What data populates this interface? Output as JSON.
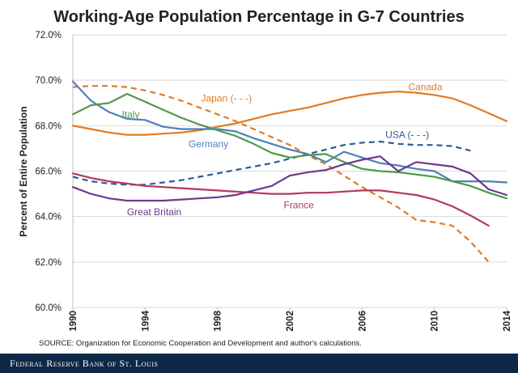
{
  "chart_data": {
    "type": "line",
    "title": "Working-Age Population Percentage in G-7 Countries",
    "ylabel": "Percent of Entire Population",
    "xlabel": "",
    "xlim": [
      1990,
      2014
    ],
    "ylim": [
      60,
      72
    ],
    "x_ticks": [
      1990,
      1994,
      1998,
      2002,
      2006,
      2010,
      2014
    ],
    "x_tick_labels": [
      "1990",
      "1994",
      "1998",
      "2002",
      "2006",
      "2010",
      "2014"
    ],
    "y_ticks": [
      60,
      62,
      64,
      66,
      68,
      70,
      72
    ],
    "y_tick_labels": [
      "60.0%",
      "62.0%",
      "64.0%",
      "66.0%",
      "68.0%",
      "70.0%",
      "72.0%"
    ],
    "grid": "horizontal",
    "series": [
      {
        "name": "Canada",
        "label": "Canada",
        "color": "#e07b24",
        "dash": false,
        "x": [
          1990,
          1991,
          1992,
          1993,
          1994,
          1995,
          1996,
          1997,
          1998,
          1999,
          2000,
          2001,
          2002,
          2003,
          2004,
          2005,
          2006,
          2007,
          2008,
          2009,
          2010,
          2011,
          2012,
          2013,
          2014
        ],
        "values": [
          68.0,
          67.85,
          67.7,
          67.6,
          67.6,
          67.65,
          67.7,
          67.8,
          67.95,
          68.1,
          68.3,
          68.5,
          68.65,
          68.8,
          69.0,
          69.2,
          69.35,
          69.45,
          69.5,
          69.45,
          69.35,
          69.2,
          68.9,
          68.55,
          68.2
        ]
      },
      {
        "name": "Japan",
        "label": "Japan (- - -)",
        "color": "#e07b24",
        "dash": true,
        "x": [
          1990,
          1991,
          1992,
          1993,
          1994,
          1995,
          1996,
          1997,
          1998,
          1999,
          2000,
          2001,
          2002,
          2003,
          2004,
          2005,
          2006,
          2007,
          2008,
          2009,
          2010,
          2011,
          2012,
          2013
        ],
        "values": [
          69.7,
          69.75,
          69.75,
          69.7,
          69.55,
          69.35,
          69.1,
          68.8,
          68.5,
          68.2,
          67.85,
          67.5,
          67.15,
          66.7,
          66.3,
          65.8,
          65.3,
          64.85,
          64.4,
          63.85,
          63.75,
          63.6,
          62.9,
          62.0
        ]
      },
      {
        "name": "USA",
        "label": "USA (- - -)",
        "color": "#2e5a9c",
        "dash": true,
        "x": [
          1990,
          1991,
          1992,
          1993,
          1994,
          1995,
          1996,
          1997,
          1998,
          1999,
          2000,
          2001,
          2002,
          2003,
          2004,
          2005,
          2006,
          2007,
          2008,
          2009,
          2010,
          2011,
          2012
        ],
        "values": [
          65.75,
          65.55,
          65.45,
          65.4,
          65.4,
          65.5,
          65.6,
          65.75,
          65.9,
          66.05,
          66.2,
          66.35,
          66.55,
          66.75,
          66.95,
          67.15,
          67.25,
          67.3,
          67.2,
          67.15,
          67.15,
          67.1,
          66.9
        ]
      },
      {
        "name": "Germany",
        "label": "Germany",
        "color": "#4f81bd",
        "dash": false,
        "x": [
          1990,
          1991,
          1992,
          1993,
          1994,
          1995,
          1996,
          1997,
          1998,
          1999,
          2000,
          2001,
          2002,
          2003,
          2004,
          2005,
          2006,
          2007,
          2008,
          2009,
          2010,
          2011,
          2012,
          2013,
          2014
        ],
        "values": [
          69.95,
          69.1,
          68.6,
          68.3,
          68.25,
          67.95,
          67.85,
          67.85,
          67.85,
          67.75,
          67.45,
          67.2,
          66.95,
          66.75,
          66.4,
          66.85,
          66.6,
          66.35,
          66.25,
          66.1,
          66.0,
          65.55,
          65.55,
          65.55,
          65.5
        ]
      },
      {
        "name": "Italy",
        "label": "Italy",
        "color": "#4e9a47",
        "dash": false,
        "x": [
          1990,
          1991,
          1992,
          1993,
          1994,
          1995,
          1996,
          1997,
          1998,
          1999,
          2000,
          2001,
          2002,
          2003,
          2004,
          2005,
          2006,
          2007,
          2008,
          2009,
          2010,
          2011,
          2012,
          2013,
          2014
        ],
        "values": [
          68.5,
          68.9,
          69.0,
          69.4,
          69.05,
          68.7,
          68.35,
          68.05,
          67.8,
          67.55,
          67.2,
          66.8,
          66.6,
          66.7,
          66.75,
          66.4,
          66.1,
          66.0,
          65.95,
          65.85,
          65.75,
          65.55,
          65.35,
          65.05,
          64.8
        ]
      },
      {
        "name": "France",
        "label": "France",
        "color": "#b03a5b",
        "dash": false,
        "x": [
          1990,
          1991,
          1992,
          1993,
          1994,
          1995,
          1996,
          1997,
          1998,
          1999,
          2000,
          2001,
          2002,
          2003,
          2004,
          2005,
          2006,
          2007,
          2008,
          2009,
          2010,
          2011,
          2012,
          2013
        ],
        "values": [
          65.9,
          65.7,
          65.55,
          65.45,
          65.35,
          65.3,
          65.25,
          65.2,
          65.15,
          65.1,
          65.05,
          65.0,
          65.0,
          65.05,
          65.05,
          65.1,
          65.15,
          65.15,
          65.05,
          64.95,
          64.75,
          64.45,
          64.05,
          63.6
        ]
      },
      {
        "name": "Great Britain",
        "label": "Great Britain",
        "color": "#6b3a8e",
        "dash": false,
        "x": [
          1990,
          1991,
          1992,
          1993,
          1994,
          1995,
          1996,
          1997,
          1998,
          1999,
          2000,
          2001,
          2002,
          2003,
          2004,
          2005,
          2006,
          2007,
          2008,
          2009,
          2010,
          2011,
          2012,
          2013,
          2014
        ],
        "values": [
          65.3,
          65.0,
          64.8,
          64.7,
          64.7,
          64.7,
          64.75,
          64.8,
          64.85,
          64.95,
          65.15,
          65.35,
          65.8,
          65.95,
          66.05,
          66.3,
          66.5,
          66.65,
          66.0,
          66.4,
          66.3,
          66.2,
          65.9,
          65.2,
          64.95
        ]
      }
    ]
  },
  "labels": [
    {
      "text": "Japan (- - -)",
      "x": 1998.5,
      "y": 69.2,
      "color": "#e07b24"
    },
    {
      "text": "Canada",
      "x": 2009.5,
      "y": 69.7,
      "color": "#e07b24"
    },
    {
      "text": "Italy",
      "x": 1993.2,
      "y": 68.5,
      "color": "#4e9a47"
    },
    {
      "text": "Germany",
      "x": 1997.5,
      "y": 67.2,
      "color": "#4f81bd"
    },
    {
      "text": "USA (- - -)",
      "x": 2008.5,
      "y": 67.6,
      "color": "#2e5a9c"
    },
    {
      "text": "France",
      "x": 2002.5,
      "y": 64.5,
      "color": "#b03a5b"
    },
    {
      "text": "Great Britain",
      "x": 1994.5,
      "y": 64.2,
      "color": "#6b3a8e"
    }
  ],
  "source": "SOURCE: Organization for Economic Cooperation and Development and author's calculations.",
  "footer": "Federal Reserve Bank of St. Louis"
}
